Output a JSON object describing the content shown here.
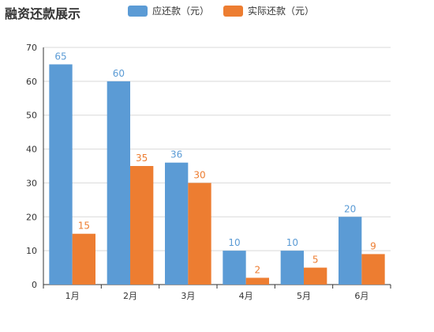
{
  "chart_data": {
    "type": "bar",
    "title": "融资还款展示",
    "categories": [
      "1月",
      "2月",
      "3月",
      "4月",
      "5月",
      "6月"
    ],
    "series": [
      {
        "name": "应还款（元）",
        "color": "#5b9bd5",
        "values": [
          65,
          60,
          36,
          10,
          10,
          20
        ]
      },
      {
        "name": "实际还款（元）",
        "color": "#ed7d31",
        "values": [
          15,
          35,
          30,
          2,
          5,
          9
        ]
      }
    ],
    "ylim": [
      0,
      70
    ],
    "yticks": [
      0,
      10,
      20,
      30,
      40,
      50,
      60,
      70
    ],
    "grid": true,
    "legend_position": "top"
  }
}
